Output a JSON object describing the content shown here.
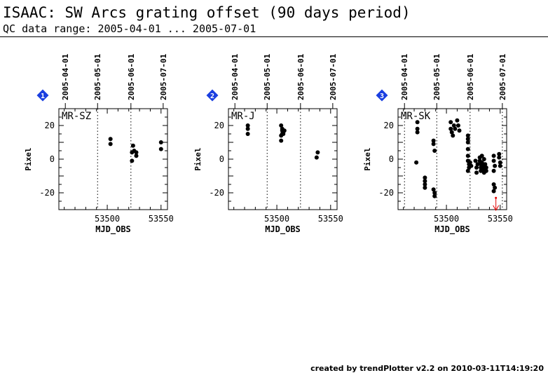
{
  "header": {
    "title": "ISAAC: SW Arcs grating offset (90 days period)",
    "subtitle": "QC data range: 2005-04-01 ... 2005-07-01"
  },
  "footer": {
    "text": "created by trendPlotter v2.2 on 2010-03-11T14:19:20"
  },
  "colors": {
    "marker": "#1a3fe0",
    "points": "#000000",
    "outlier": "#e00000"
  },
  "chart_data": [
    {
      "type": "scatter",
      "panel_number": "1",
      "label": "MR-SZ",
      "xlabel": "MJD_OBS",
      "ylabel": "Pixel",
      "xlim": [
        53455,
        53556
      ],
      "ylim": [
        -30,
        30
      ],
      "xticks": [
        53500,
        53550
      ],
      "yticks": [
        -20,
        0,
        20
      ],
      "date_ticks": [
        {
          "label": "2005-04-01",
          "mjd": 53461
        },
        {
          "label": "2005-05-01",
          "mjd": 53491
        },
        {
          "label": "2005-06-01",
          "mjd": 53522
        },
        {
          "label": "2005-07-01",
          "mjd": 53552
        }
      ],
      "vlines": [
        53491,
        53522
      ],
      "points": [
        {
          "x": 53503,
          "y": 12
        },
        {
          "x": 53503,
          "y": 9
        },
        {
          "x": 53523,
          "y": 4
        },
        {
          "x": 53524,
          "y": 8
        },
        {
          "x": 53523,
          "y": -1
        },
        {
          "x": 53525,
          "y": 5
        },
        {
          "x": 53527,
          "y": 4
        },
        {
          "x": 53527,
          "y": 2
        },
        {
          "x": 53550,
          "y": 10
        },
        {
          "x": 53550,
          "y": 6
        }
      ]
    },
    {
      "type": "scatter",
      "panel_number": "2",
      "label": "MR-J",
      "xlabel": "MJD_OBS",
      "ylabel": "Pixel",
      "xlim": [
        53455,
        53556
      ],
      "ylim": [
        -30,
        30
      ],
      "xticks": [
        53500,
        53550
      ],
      "yticks": [
        -20,
        0,
        20
      ],
      "date_ticks": [
        {
          "label": "2005-04-01",
          "mjd": 53461
        },
        {
          "label": "2005-05-01",
          "mjd": 53491
        },
        {
          "label": "2005-06-01",
          "mjd": 53522
        },
        {
          "label": "2005-07-01",
          "mjd": 53552
        }
      ],
      "vlines": [
        53491,
        53522
      ],
      "points": [
        {
          "x": 53473,
          "y": 20
        },
        {
          "x": 53473,
          "y": 18
        },
        {
          "x": 53473,
          "y": 15
        },
        {
          "x": 53504,
          "y": 20
        },
        {
          "x": 53505,
          "y": 18
        },
        {
          "x": 53505,
          "y": 17
        },
        {
          "x": 53506,
          "y": 16
        },
        {
          "x": 53505,
          "y": 15
        },
        {
          "x": 53504,
          "y": 14
        },
        {
          "x": 53507,
          "y": 17
        },
        {
          "x": 53506,
          "y": 15
        },
        {
          "x": 53504,
          "y": 11
        },
        {
          "x": 53538,
          "y": 4
        },
        {
          "x": 53537,
          "y": 1
        }
      ]
    },
    {
      "type": "scatter",
      "panel_number": "3",
      "label": "MR-SK",
      "xlabel": "MJD_OBS",
      "ylabel": "Pixel",
      "xlim": [
        53455,
        53556
      ],
      "ylim": [
        -30,
        30
      ],
      "xticks": [
        53500,
        53550
      ],
      "yticks": [
        -20,
        0,
        20
      ],
      "date_ticks": [
        {
          "label": "2005-04-01",
          "mjd": 53461
        },
        {
          "label": "2005-05-01",
          "mjd": 53491
        },
        {
          "label": "2005-06-01",
          "mjd": 53522
        },
        {
          "label": "2005-07-01",
          "mjd": 53552
        }
      ],
      "vlines": [
        53461,
        53491,
        53522,
        53552
      ],
      "points": [
        {
          "x": 53473,
          "y": 22
        },
        {
          "x": 53473,
          "y": 18
        },
        {
          "x": 53473,
          "y": 16
        },
        {
          "x": 53472,
          "y": -2
        },
        {
          "x": 53480,
          "y": -11
        },
        {
          "x": 53480,
          "y": -13
        },
        {
          "x": 53480,
          "y": -15
        },
        {
          "x": 53480,
          "y": -17
        },
        {
          "x": 53488,
          "y": 11
        },
        {
          "x": 53488,
          "y": 9
        },
        {
          "x": 53489,
          "y": 5
        },
        {
          "x": 53488,
          "y": -18
        },
        {
          "x": 53489,
          "y": -20
        },
        {
          "x": 53489,
          "y": -22
        },
        {
          "x": 53504,
          "y": 22
        },
        {
          "x": 53504,
          "y": 18
        },
        {
          "x": 53505,
          "y": 16
        },
        {
          "x": 53506,
          "y": 14
        },
        {
          "x": 53507,
          "y": 20
        },
        {
          "x": 53508,
          "y": 18
        },
        {
          "x": 53510,
          "y": 23
        },
        {
          "x": 53511,
          "y": 20
        },
        {
          "x": 53512,
          "y": 17
        },
        {
          "x": 53520,
          "y": 14
        },
        {
          "x": 53520,
          "y": 12
        },
        {
          "x": 53520,
          "y": 10
        },
        {
          "x": 53520,
          "y": 6
        },
        {
          "x": 53520,
          "y": 2
        },
        {
          "x": 53520,
          "y": -1
        },
        {
          "x": 53521,
          "y": -3
        },
        {
          "x": 53521,
          "y": -5
        },
        {
          "x": 53520,
          "y": -7
        },
        {
          "x": 53522,
          "y": -2
        },
        {
          "x": 53523,
          "y": -4
        },
        {
          "x": 53527,
          "y": -1
        },
        {
          "x": 53528,
          "y": -5
        },
        {
          "x": 53528,
          "y": -8
        },
        {
          "x": 53529,
          "y": -3
        },
        {
          "x": 53531,
          "y": 1
        },
        {
          "x": 53531,
          "y": -1
        },
        {
          "x": 53532,
          "y": -3
        },
        {
          "x": 53532,
          "y": -5
        },
        {
          "x": 53532,
          "y": -7
        },
        {
          "x": 53533,
          "y": 2
        },
        {
          "x": 53533,
          "y": -2
        },
        {
          "x": 53534,
          "y": -4
        },
        {
          "x": 53534,
          "y": -6
        },
        {
          "x": 53535,
          "y": -8
        },
        {
          "x": 53535,
          "y": 0
        },
        {
          "x": 53536,
          "y": -3
        },
        {
          "x": 53537,
          "y": -5
        },
        {
          "x": 53537,
          "y": -7
        },
        {
          "x": 53544,
          "y": 2
        },
        {
          "x": 53544,
          "y": -1
        },
        {
          "x": 53545,
          "y": -4
        },
        {
          "x": 53544,
          "y": -7
        },
        {
          "x": 53544,
          "y": -15
        },
        {
          "x": 53545,
          "y": -17
        },
        {
          "x": 53544,
          "y": -19
        },
        {
          "x": 53549,
          "y": 3
        },
        {
          "x": 53549,
          "y": 1
        },
        {
          "x": 53550,
          "y": -2
        },
        {
          "x": 53550,
          "y": -4
        }
      ],
      "outliers": [
        {
          "x": 53546,
          "y": -23,
          "direction": "below"
        }
      ]
    }
  ]
}
